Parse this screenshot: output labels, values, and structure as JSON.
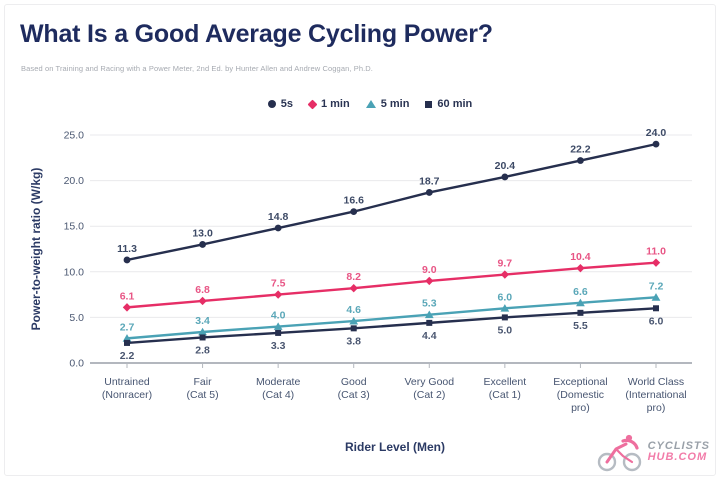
{
  "page": {
    "title": "What Is a Good Average Cycling Power?",
    "subtitle": "Based on Training and Racing with a Power Meter, 2nd Ed. by Hunter Allen and Andrew Coggan, Ph.D."
  },
  "chart_data": {
    "type": "line",
    "title": "What Is a Good Average Cycling Power?",
    "xlabel": "Rider Level (Men)",
    "ylabel": "Power-to-weight ratio (W/kg)",
    "ylim": [
      0,
      25
    ],
    "ytick_step": 5,
    "ytick_labels": [
      "0.0",
      "5.0",
      "10.0",
      "15.0",
      "20.0",
      "25.0"
    ],
    "grid": true,
    "legend_position": "top",
    "categories": [
      "Untrained (Nonracer)",
      "Fair (Cat 5)",
      "Moderate (Cat 4)",
      "Good (Cat 3)",
      "Very Good (Cat 2)",
      "Excellent (Cat 1)",
      "Exceptional (Domestic pro)",
      "World Class (International pro)"
    ],
    "category_lines": [
      [
        "Untrained",
        "(Nonracer)"
      ],
      [
        "Fair",
        "(Cat 5)"
      ],
      [
        "Moderate",
        "(Cat 4)"
      ],
      [
        "Good",
        "(Cat 3)"
      ],
      [
        "Very Good",
        "(Cat 2)"
      ],
      [
        "Excellent",
        "(Cat 1)"
      ],
      [
        "Exceptional",
        "(Domestic",
        "pro)"
      ],
      [
        "World Class",
        "(International",
        "pro)"
      ]
    ],
    "series": [
      {
        "name": "5s",
        "marker": "circle",
        "color": "#262f4e",
        "label_color": "#3d4a66",
        "label_position": "above",
        "values": [
          11.3,
          13.0,
          14.8,
          16.6,
          18.7,
          20.4,
          22.2,
          24.0
        ]
      },
      {
        "name": "1 min",
        "marker": "diamond",
        "color": "#e62e66",
        "label_color": "#e85585",
        "label_position": "above",
        "values": [
          6.1,
          6.8,
          7.5,
          8.2,
          9.0,
          9.7,
          10.4,
          11.0
        ]
      },
      {
        "name": "5 min",
        "marker": "triangle",
        "color": "#4aa2b5",
        "label_color": "#5aa7b8",
        "label_position": "above",
        "values": [
          2.7,
          3.4,
          4.0,
          4.6,
          5.3,
          6.0,
          6.6,
          7.2
        ]
      },
      {
        "name": "60 min",
        "marker": "square",
        "color": "#262f4e",
        "label_color": "#4a5670",
        "label_position": "below",
        "values": [
          2.2,
          2.8,
          3.3,
          3.8,
          4.4,
          5.0,
          5.5,
          6.0
        ]
      }
    ]
  },
  "colors": {
    "title_navy": "#1e2b5e",
    "pink": "#e62e66",
    "teal": "#4aa2b5",
    "navy": "#262f4e",
    "grid": "#e9e9ec",
    "axis": "#b3b7be"
  },
  "logo": {
    "line1": "CYCLISTS",
    "line2": "HUB.COM"
  }
}
